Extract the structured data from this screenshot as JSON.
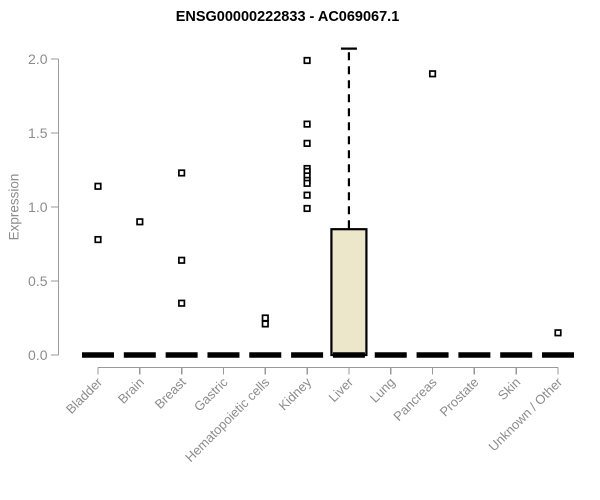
{
  "chart_data": {
    "type": "box",
    "title": "ENSG00000222833 - AC069067.1",
    "ylabel": "Expression",
    "xlabel": "",
    "ylim": [
      0.0,
      2.1
    ],
    "yticks": [
      0.0,
      0.5,
      1.0,
      1.5,
      2.0
    ],
    "grid": false,
    "legend": "none",
    "categories": [
      "Bladder",
      "Brain",
      "Breast",
      "Gastric",
      "Hematopoietic cells",
      "Kidney",
      "Liver",
      "Lung",
      "Pancreas",
      "Prostate",
      "Skin",
      "Unknown / Other"
    ],
    "groups": [
      {
        "category": "Bladder",
        "q1": 0,
        "median": 0,
        "q3": 0,
        "whisker_low": 0,
        "whisker_high": 0,
        "outliers": [
          1.14,
          0.78
        ]
      },
      {
        "category": "Brain",
        "q1": 0,
        "median": 0,
        "q3": 0,
        "whisker_low": 0,
        "whisker_high": 0,
        "outliers": [
          0.9
        ]
      },
      {
        "category": "Breast",
        "q1": 0,
        "median": 0,
        "q3": 0,
        "whisker_low": 0,
        "whisker_high": 0,
        "outliers": [
          1.23,
          0.64,
          0.35
        ]
      },
      {
        "category": "Gastric",
        "q1": 0,
        "median": 0,
        "q3": 0,
        "whisker_low": 0,
        "whisker_high": 0,
        "outliers": []
      },
      {
        "category": "Hematopoietic cells",
        "q1": 0,
        "median": 0,
        "q3": 0,
        "whisker_low": 0,
        "whisker_high": 0,
        "outliers": [
          0.25,
          0.21
        ]
      },
      {
        "category": "Kidney",
        "q1": 0,
        "median": 0,
        "q3": 0,
        "whisker_low": 0,
        "whisker_high": 0,
        "outliers": [
          1.99,
          1.56,
          1.43,
          1.26,
          1.24,
          1.21,
          1.18,
          1.16,
          1.08,
          0.99
        ]
      },
      {
        "category": "Liver",
        "q1": 0,
        "median": 0,
        "q3": 0.85,
        "whisker_low": 0,
        "whisker_high": 2.07,
        "outliers": []
      },
      {
        "category": "Lung",
        "q1": 0,
        "median": 0,
        "q3": 0,
        "whisker_low": 0,
        "whisker_high": 0,
        "outliers": []
      },
      {
        "category": "Pancreas",
        "q1": 0,
        "median": 0,
        "q3": 0,
        "whisker_low": 0,
        "whisker_high": 0,
        "outliers": [
          1.9
        ]
      },
      {
        "category": "Prostate",
        "q1": 0,
        "median": 0,
        "q3": 0,
        "whisker_low": 0,
        "whisker_high": 0,
        "outliers": []
      },
      {
        "category": "Skin",
        "q1": 0,
        "median": 0,
        "q3": 0,
        "whisker_low": 0,
        "whisker_high": 0,
        "outliers": []
      },
      {
        "category": "Unknown / Other",
        "q1": 0,
        "median": 0,
        "q3": 0,
        "whisker_low": 0,
        "whisker_high": 0,
        "outliers": [
          0.15
        ]
      }
    ],
    "colors": {
      "box_fill": "#ece6ca",
      "box_border": "#000000",
      "median": "#000000",
      "whisker": "#000000",
      "outlier_fill": "#ffffff",
      "outlier_border": "#000000",
      "axis_line": "#9a9a9a",
      "axis_text": "#8c8c8c",
      "title_text": "#000000",
      "background": "#ffffff"
    }
  }
}
